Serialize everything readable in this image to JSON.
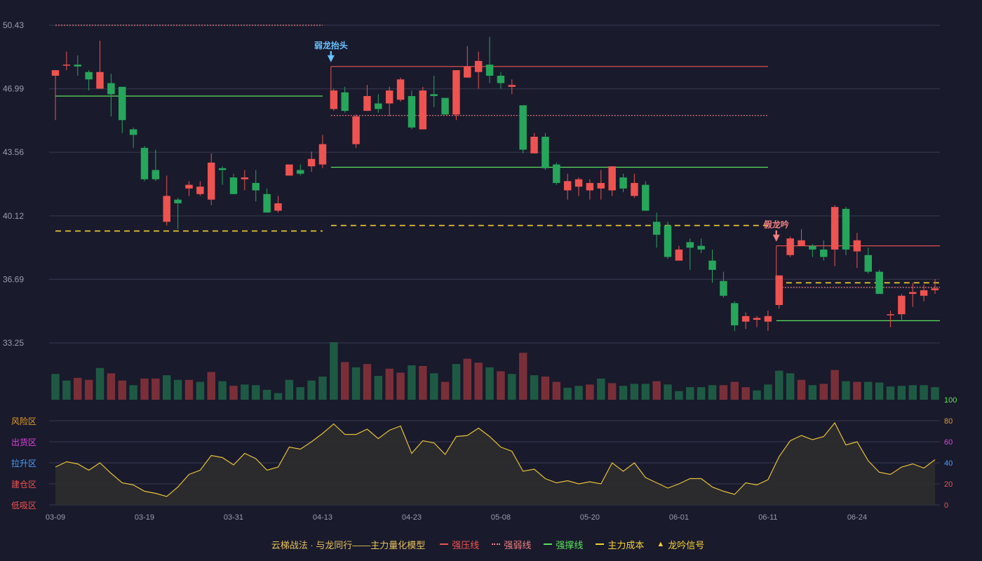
{
  "legend": {
    "title": "云梯战法 · 与龙同行——主力量化模型",
    "items": [
      {
        "label": "强压线",
        "color": "#ef5350",
        "style": "solid"
      },
      {
        "label": "强弱线",
        "color": "#f08080",
        "style": "dotted"
      },
      {
        "label": "强撑线",
        "color": "#5de05d",
        "style": "solid"
      },
      {
        "label": "主力成本",
        "color": "#f5d033",
        "style": "dashed"
      },
      {
        "label": "龙吟信号",
        "color": "#f5d033",
        "style": "triangle",
        "symbol": "▲"
      }
    ]
  },
  "colors": {
    "up": "#ef5350",
    "down": "#26a65b",
    "vol_up": "#7a2f38",
    "vol_down": "#1e5a43",
    "grid": "#393b52",
    "axis_text": "#9a9cb0",
    "osc_line": "#e8c13a",
    "osc_fill": "#2e2c2d"
  },
  "chart_data": [
    {
      "type": "candlestick",
      "yticks": [
        "50.43",
        "46.99",
        "43.56",
        "40.12",
        "36.69",
        "33.25"
      ],
      "ylim": [
        33.25,
        50.43
      ],
      "xticks": [
        {
          "i": 0,
          "label": "03-09"
        },
        {
          "i": 8,
          "label": "03-19"
        },
        {
          "i": 16,
          "label": "03-31"
        },
        {
          "i": 24,
          "label": "04-13"
        },
        {
          "i": 32,
          "label": "04-23"
        },
        {
          "i": 40,
          "label": "05-08"
        },
        {
          "i": 48,
          "label": "05-20"
        },
        {
          "i": 56,
          "label": "06-01"
        },
        {
          "i": 64,
          "label": "06-11"
        },
        {
          "i": 72,
          "label": "06-24"
        }
      ],
      "candles": [
        [
          47.7,
          48.0,
          48.0,
          45.3
        ],
        [
          48.3,
          48.3,
          49.0,
          48.0
        ],
        [
          48.3,
          48.2,
          48.8,
          47.7
        ],
        [
          47.9,
          47.5,
          48.0,
          46.9
        ],
        [
          47.0,
          47.9,
          49.6,
          47.0
        ],
        [
          47.3,
          46.7,
          47.8,
          45.5
        ],
        [
          47.1,
          45.3,
          47.1,
          44.6
        ],
        [
          44.8,
          44.5,
          44.9,
          43.8
        ],
        [
          43.8,
          42.1,
          43.9,
          42.0
        ],
        [
          42.6,
          42.1,
          43.7,
          42.0
        ],
        [
          39.8,
          41.2,
          42.3,
          39.6
        ],
        [
          41.0,
          40.8,
          41.1,
          39.4
        ],
        [
          41.6,
          41.8,
          42.0,
          41.2
        ],
        [
          41.3,
          41.7,
          42.0,
          41.2
        ],
        [
          41.0,
          43.0,
          43.5,
          40.7
        ],
        [
          42.7,
          42.6,
          42.8,
          41.8
        ],
        [
          42.2,
          41.3,
          42.4,
          41.3
        ],
        [
          42.1,
          42.2,
          42.6,
          41.5
        ],
        [
          41.9,
          41.5,
          42.6,
          40.9
        ],
        [
          41.3,
          40.3,
          41.6,
          40.3
        ],
        [
          40.4,
          40.8,
          41.2,
          40.3
        ],
        [
          42.3,
          42.9,
          42.9,
          42.3
        ],
        [
          42.6,
          42.4,
          42.9,
          42.3
        ],
        [
          42.8,
          43.2,
          43.6,
          42.5
        ],
        [
          42.9,
          44.0,
          44.5,
          42.7
        ],
        [
          45.9,
          46.9,
          47.0,
          45.8
        ],
        [
          46.8,
          45.8,
          47.1,
          45.7
        ],
        [
          44.0,
          45.5,
          45.6,
          43.8
        ],
        [
          45.8,
          46.6,
          47.2,
          45.8
        ],
        [
          46.2,
          45.9,
          46.7,
          45.7
        ],
        [
          46.2,
          46.9,
          47.1,
          45.5
        ],
        [
          46.4,
          47.5,
          47.6,
          46.3
        ],
        [
          46.6,
          44.9,
          46.9,
          44.8
        ],
        [
          44.8,
          46.9,
          47.1,
          44.8
        ],
        [
          46.7,
          46.6,
          47.7,
          46.0
        ],
        [
          46.5,
          45.6,
          46.5,
          45.6
        ],
        [
          45.6,
          48.0,
          48.0,
          45.3
        ],
        [
          47.6,
          48.2,
          49.3,
          47.6
        ],
        [
          47.9,
          48.5,
          49.0,
          47.0
        ],
        [
          48.3,
          47.7,
          49.8,
          47.3
        ],
        [
          47.7,
          47.3,
          47.9,
          47.0
        ],
        [
          47.1,
          47.2,
          47.5,
          46.7
        ],
        [
          46.1,
          43.7,
          46.1,
          43.5
        ],
        [
          43.5,
          44.4,
          44.6,
          43.5
        ],
        [
          44.4,
          42.7,
          44.6,
          42.6
        ],
        [
          42.9,
          41.9,
          43.0,
          41.8
        ],
        [
          41.5,
          42.0,
          42.4,
          41.0
        ],
        [
          41.7,
          42.1,
          42.2,
          41.2
        ],
        [
          41.5,
          41.9,
          42.1,
          41.0
        ],
        [
          41.6,
          41.9,
          42.6,
          41.0
        ],
        [
          41.5,
          42.8,
          42.8,
          41.2
        ],
        [
          42.2,
          41.6,
          42.4,
          41.4
        ],
        [
          41.2,
          41.9,
          42.4,
          41.1
        ],
        [
          41.8,
          40.4,
          42.0,
          40.4
        ],
        [
          39.8,
          39.1,
          40.3,
          38.4
        ],
        [
          39.6,
          37.9,
          39.8,
          37.8
        ],
        [
          37.7,
          38.3,
          38.5,
          37.7
        ],
        [
          38.7,
          38.4,
          38.9,
          37.2
        ],
        [
          38.5,
          38.3,
          38.9,
          38.1
        ],
        [
          37.7,
          37.2,
          38.3,
          36.5
        ],
        [
          36.6,
          35.8,
          37.1,
          35.7
        ],
        [
          35.4,
          34.2,
          35.5,
          33.9
        ],
        [
          34.4,
          34.7,
          34.9,
          34.0
        ],
        [
          34.5,
          34.6,
          34.7,
          34.1
        ],
        [
          34.4,
          34.7,
          35.0,
          33.9
        ],
        [
          35.3,
          36.9,
          36.9,
          35.1
        ],
        [
          38.0,
          38.9,
          39.0,
          37.9
        ],
        [
          38.5,
          38.8,
          39.4,
          38.5
        ],
        [
          38.5,
          38.3,
          38.6,
          37.9
        ],
        [
          38.3,
          37.9,
          38.8,
          37.7
        ],
        [
          38.3,
          40.6,
          40.7,
          37.4
        ],
        [
          40.5,
          38.3,
          40.6,
          38.0
        ],
        [
          38.2,
          38.8,
          39.2,
          37.3
        ],
        [
          38.0,
          37.1,
          38.4,
          37.0
        ],
        [
          37.1,
          35.9,
          37.2,
          35.9
        ],
        [
          34.8,
          34.8,
          35.0,
          34.1
        ],
        [
          34.8,
          35.8,
          35.9,
          34.5
        ],
        [
          35.9,
          36.0,
          36.5,
          35.2
        ],
        [
          35.8,
          36.1,
          36.4,
          35.5
        ],
        [
          36.1,
          36.2,
          36.7,
          35.9
        ]
      ],
      "volume": [
        39,
        29,
        33,
        30,
        48,
        40,
        29,
        22,
        32,
        32,
        37,
        30,
        30,
        27,
        42,
        28,
        21,
        23,
        22,
        15,
        10,
        30,
        19,
        29,
        35,
        87,
        57,
        49,
        54,
        36,
        47,
        41,
        52,
        51,
        40,
        27,
        54,
        62,
        56,
        49,
        43,
        39,
        71,
        37,
        35,
        27,
        18,
        21,
        23,
        32,
        25,
        21,
        24,
        24,
        28,
        23,
        13,
        19,
        19,
        22,
        22,
        27,
        19,
        14,
        23,
        44,
        40,
        30,
        22,
        24,
        45,
        28,
        27,
        27,
        26,
        20,
        21,
        22,
        22,
        19
      ],
      "volume_up": [
        false,
        false,
        true,
        true,
        false,
        true,
        true,
        false,
        true,
        true,
        false,
        false,
        true,
        false,
        true,
        false,
        true,
        false,
        false,
        false,
        false,
        false,
        false,
        false,
        false,
        false,
        true,
        false,
        true,
        false,
        true,
        true,
        false,
        true,
        false,
        true,
        false,
        true,
        true,
        false,
        true,
        false,
        true,
        false,
        true,
        true,
        false,
        false,
        true,
        false,
        true,
        false,
        false,
        false,
        true,
        false,
        false,
        false,
        false,
        false,
        true,
        true,
        true,
        false,
        false,
        false,
        false,
        true,
        false,
        true,
        true,
        false,
        true,
        false,
        false,
        false,
        false,
        false,
        false,
        false
      ],
      "lines": [
        {
          "kind": "pressure",
          "from": 25,
          "to": 64,
          "value": 48.2
        },
        {
          "kind": "weak",
          "from": 0,
          "to": 24,
          "value": 50.43
        },
        {
          "kind": "weak",
          "from": 25,
          "to": 64,
          "value": 45.55
        },
        {
          "kind": "weak",
          "from": 65,
          "to": 79,
          "value": 36.25
        },
        {
          "kind": "support",
          "from": 0,
          "to": 24,
          "value": 46.6
        },
        {
          "kind": "support",
          "from": 25,
          "to": 64,
          "value": 42.75
        },
        {
          "kind": "support",
          "from": 65,
          "to": 79,
          "value": 34.45
        },
        {
          "kind": "cost",
          "from": 0,
          "to": 24,
          "value": 39.3
        },
        {
          "kind": "cost",
          "from": 25,
          "to": 64,
          "value": 39.6
        },
        {
          "kind": "cost",
          "from": 65,
          "to": 79,
          "value": 36.5
        },
        {
          "kind": "pressure",
          "from": 65,
          "to": 79,
          "value": 38.5
        }
      ],
      "annotations": [
        {
          "i": 25,
          "label": "弱龙抬头",
          "color": "#68c4ff"
        },
        {
          "i": 65,
          "label": "假龙吟",
          "color": "#f08080"
        }
      ]
    },
    {
      "type": "area",
      "ylim": [
        0,
        100
      ],
      "yticks": [
        0,
        20,
        40,
        60,
        80,
        100
      ],
      "zones": [
        {
          "label": "风险区",
          "color": "#e39d2a"
        },
        {
          "label": "出货区",
          "color": "#e040e0"
        },
        {
          "label": "拉升区",
          "color": "#4aa0ff"
        },
        {
          "label": "建仓区",
          "color": "#ef5350"
        },
        {
          "label": "低吸区",
          "color": "#ef5350"
        }
      ],
      "ytick_colors": [
        "#ef5350",
        "#ef5350",
        "#4aa0ff",
        "#e040e0",
        "#e39d2a",
        "#5de05d"
      ],
      "values": [
        36,
        41,
        39,
        33,
        40,
        30,
        21,
        19,
        13,
        11,
        8,
        17,
        29,
        33,
        47,
        45,
        38,
        49,
        44,
        33,
        36,
        55,
        53,
        60,
        68,
        77,
        67,
        67,
        72,
        63,
        71,
        75,
        49,
        61,
        59,
        48,
        65,
        66,
        73,
        65,
        55,
        51,
        32,
        34,
        25,
        21,
        23,
        20,
        22,
        20,
        40,
        32,
        40,
        26,
        21,
        16,
        20,
        25,
        25,
        17,
        13,
        10,
        21,
        19,
        24,
        46,
        61,
        66,
        62,
        65,
        78,
        57,
        60,
        42,
        31,
        29,
        36,
        39,
        35,
        43
      ]
    }
  ]
}
